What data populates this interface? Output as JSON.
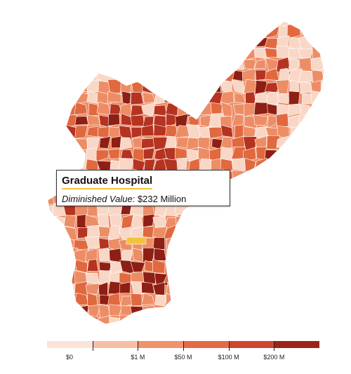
{
  "tooltip": {
    "title": "Graduate Hospital",
    "label": "Diminished Value:",
    "value": "$232 Million"
  },
  "highlight_color": "#f5c33b",
  "legend": {
    "colors": [
      "#fbe3d8",
      "#f7bfa5",
      "#f0936d",
      "#e46a45",
      "#cc4530",
      "#9c2417"
    ],
    "labels": [
      "$0",
      "$1 M",
      "$50 M",
      "$100 M",
      "$200 M"
    ]
  },
  "map_colors": {
    "base": "#ed8d66",
    "light": "#f9d7c6",
    "dark": "#b53321",
    "darkest": "#8e1f14",
    "medium": "#e1693f",
    "border": "#ffffff"
  }
}
